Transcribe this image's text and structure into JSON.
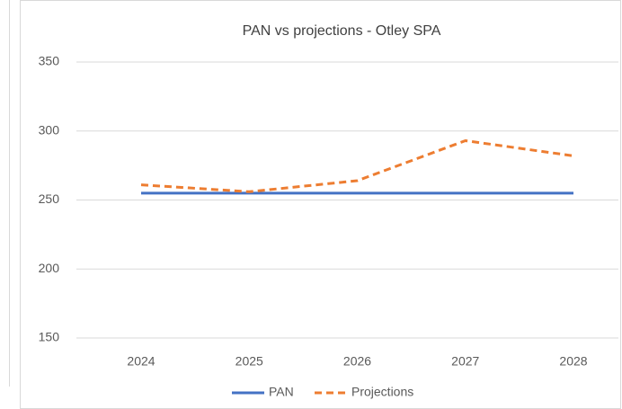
{
  "chart_data": {
    "type": "line",
    "title": "PAN vs projections - Otley SPA",
    "categories": [
      "2024",
      "2025",
      "2026",
      "2027",
      "2028"
    ],
    "series": [
      {
        "name": "PAN",
        "color": "#4472c4",
        "dash": false,
        "values": [
          255,
          255,
          255,
          255,
          255
        ]
      },
      {
        "name": "Projections",
        "color": "#ed7d31",
        "dash": true,
        "values": [
          261,
          256,
          264,
          293,
          282
        ]
      }
    ],
    "ylim": [
      150,
      350
    ],
    "yticks": [
      150,
      200,
      250,
      300,
      350
    ],
    "grid": true,
    "legend": "bottom"
  }
}
